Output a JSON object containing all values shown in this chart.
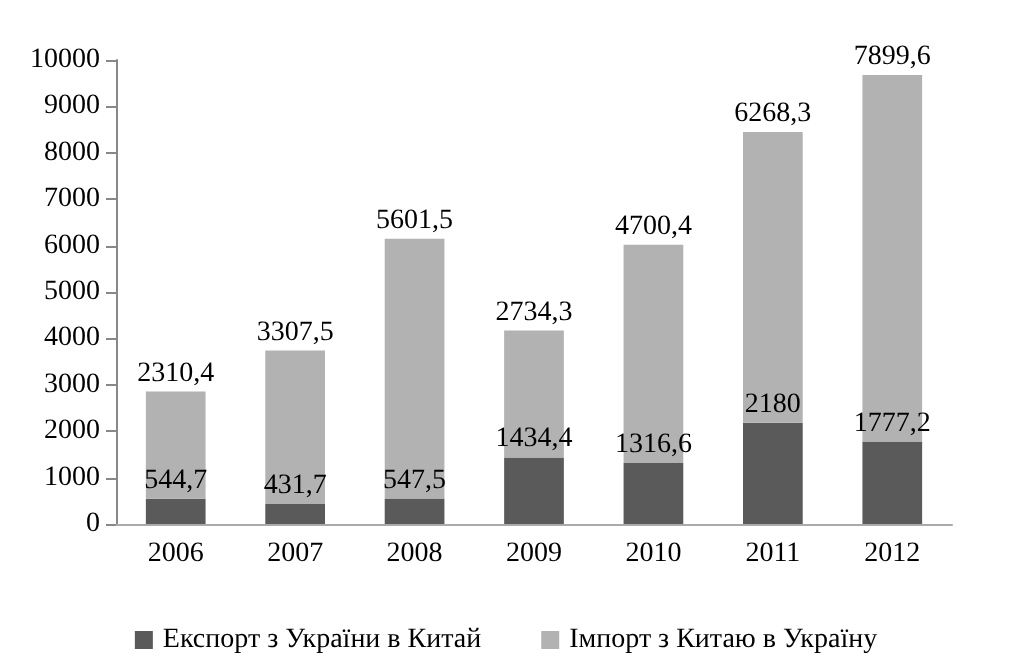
{
  "chart_data": {
    "type": "bar",
    "stacked": true,
    "categories": [
      "2006",
      "2007",
      "2008",
      "2009",
      "2010",
      "2011",
      "2012"
    ],
    "series": [
      {
        "name": "Експорт з України в Китай",
        "color": "#5a5a5a",
        "values": [
          544.7,
          431.7,
          547.5,
          1434.4,
          1316.6,
          2180,
          1777.2
        ],
        "value_labels": [
          "544,7",
          "431,7",
          "547,5",
          "1434,4",
          "1316,6",
          "2180",
          "1777,2"
        ]
      },
      {
        "name": "Імпорт з Китаю в Україну",
        "color": "#b2b2b2",
        "values": [
          2310.4,
          3307.5,
          5601.5,
          2734.3,
          4700.4,
          6268.3,
          7899.6
        ],
        "value_labels": [
          "2310,4",
          "3307,5",
          "5601,5",
          "2734,3",
          "4700,4",
          "6268,3",
          "7899,6"
        ]
      }
    ],
    "ylim": [
      0,
      10000
    ],
    "yticks": [
      0,
      1000,
      2000,
      3000,
      4000,
      5000,
      6000,
      7000,
      8000,
      9000,
      10000
    ],
    "grid": false,
    "legend": "bottom"
  }
}
